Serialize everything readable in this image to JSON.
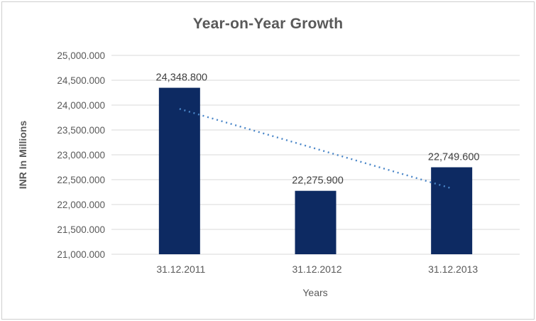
{
  "chart_data": {
    "type": "bar",
    "title": "Year-on-Year Growth",
    "categories": [
      "31.12.2011",
      "31.12.2012",
      "31.12.2013"
    ],
    "values": [
      24348.8,
      22275.9,
      22749.6
    ],
    "data_labels": [
      "24,348.800",
      "22,275.900",
      "22,749.600"
    ],
    "xlabel": "Years",
    "ylabel": "INR In Millions",
    "ylim": [
      21000,
      25000
    ],
    "ytick_step": 500,
    "ytick_labels": [
      "21,000.000",
      "21,500.000",
      "22,000.000",
      "22,500.000",
      "23,000.000",
      "23,500.000",
      "24,000.000",
      "24,500.000",
      "25,000.000"
    ],
    "grid": true,
    "legend": "none",
    "trendline": {
      "type": "linear",
      "style": "dotted",
      "endpoints": [
        23924.4,
        22325.2
      ]
    }
  },
  "colors": {
    "bar": "#0d2a62",
    "trendline": "#4a86c8",
    "gridline": "#d9d9d9",
    "axis_line": "#d9d9d9",
    "tick_label": "#595959",
    "title": "#595959",
    "data_label": "#404040",
    "border": "#cfcfcf",
    "background": "#ffffff"
  }
}
